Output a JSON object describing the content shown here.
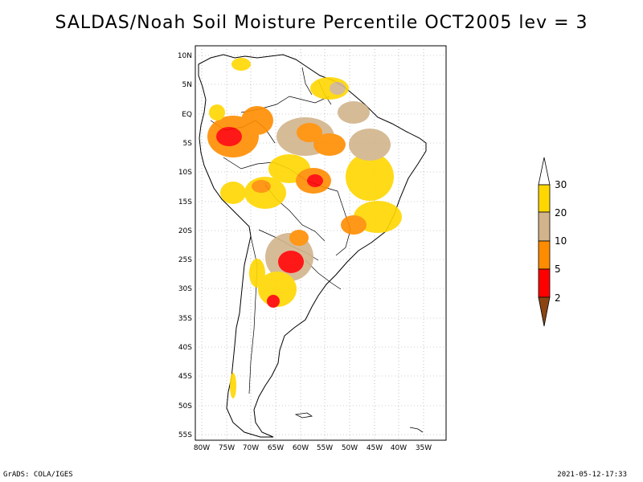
{
  "title": "SALDAS/Noah Soil Moisture Percentile OCT2005 lev = 3",
  "footer": {
    "left": "GrADS: COLA/IGES",
    "right": "2021-05-12-17:33"
  },
  "map": {
    "lon_range": [
      -81,
      -30
    ],
    "lat_range": [
      -56,
      11
    ],
    "x_tick_labels": [
      "80W",
      "75W",
      "70W",
      "65W",
      "60W",
      "55W",
      "50W",
      "45W",
      "40W",
      "35W"
    ],
    "y_tick_labels": [
      "10N",
      "5N",
      "EQ",
      "5S",
      "10S",
      "15S",
      "20S",
      "25S",
      "30S",
      "35S",
      "40S",
      "45S",
      "50S",
      "55S"
    ],
    "grid": "dotted"
  },
  "colorbar": {
    "levels": [
      "2",
      "5",
      "10",
      "20",
      "30"
    ],
    "colors": [
      "#8b4513",
      "#ff0000",
      "#ff8c00",
      "#d2b48c",
      "#ffd700",
      "#ffffff"
    ]
  }
}
